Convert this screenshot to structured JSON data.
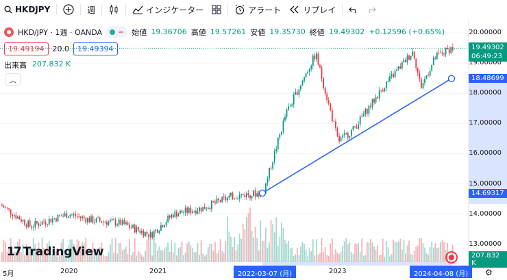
{
  "toolbar": {
    "symbol": "HKDJPY",
    "interval": "週",
    "indicators": "インジケーター",
    "alert": "アラート",
    "replay": "リプレイ"
  },
  "legend": {
    "title": "HKD/JPY · 1週 · OANDA",
    "open_label": "始値",
    "open": "19.36706",
    "high_label": "高値",
    "high": "19.57261",
    "low_label": "安値",
    "low": "19.35730",
    "close_label": "終値",
    "close": "19.49302",
    "change": "+0.12596 (+0.65%)",
    "bid": "19.49194",
    "spread": "20.0",
    "ask": "19.49394",
    "volume_label": "出来高",
    "volume": "207.832 K"
  },
  "price_axis": {
    "ticks": [
      "20.00000",
      "19.00000",
      "18.00000",
      "17.00000",
      "16.00000",
      "15.00000",
      "14.00000",
      "13.00000"
    ],
    "last_price": "19.49302",
    "countdown": "06:49:23",
    "line_end_price": "18.48699",
    "line_start_price": "14.69317",
    "volume_tag": "207.832 K"
  },
  "time_axis": {
    "labels": [
      "5月",
      "2020",
      "2021",
      "2023"
    ],
    "start_tag": "2022-03-07 (月)",
    "end_tag": "2024-04-08 (月)"
  },
  "branding": {
    "logo": "TradingView"
  },
  "colors": {
    "up": "#089981",
    "down": "#f23645",
    "accent": "#2962ff",
    "vol_up": "#a5d8cf",
    "vol_down": "#f7b2b8"
  },
  "chart_data": {
    "type": "candlestick",
    "symbol": "HKD/JPY",
    "interval": "1W",
    "ylim": [
      12.6,
      20.2
    ],
    "x_start": "2019-04",
    "x_end": "2024-05",
    "approx_close_path": [
      {
        "date": "2019-04",
        "value": 14.3
      },
      {
        "date": "2019-08",
        "value": 13.6
      },
      {
        "date": "2020-01",
        "value": 14.0
      },
      {
        "date": "2020-04",
        "value": 13.8
      },
      {
        "date": "2020-08",
        "value": 13.7
      },
      {
        "date": "2020-12",
        "value": 13.3
      },
      {
        "date": "2021-03",
        "value": 14.0
      },
      {
        "date": "2021-07",
        "value": 14.2
      },
      {
        "date": "2021-11",
        "value": 14.6
      },
      {
        "date": "2022-03",
        "value": 14.7
      },
      {
        "date": "2022-06",
        "value": 17.3
      },
      {
        "date": "2022-10",
        "value": 19.3
      },
      {
        "date": "2023-01",
        "value": 16.4
      },
      {
        "date": "2023-03",
        "value": 16.8
      },
      {
        "date": "2023-07",
        "value": 18.2
      },
      {
        "date": "2023-11",
        "value": 19.4
      },
      {
        "date": "2023-12",
        "value": 18.2
      },
      {
        "date": "2024-02",
        "value": 19.2
      },
      {
        "date": "2024-04",
        "value": 19.49
      }
    ],
    "trendline": {
      "from": {
        "date": "2022-03-07",
        "value": 14.69317
      },
      "to": {
        "date": "2024-04-08",
        "value": 18.48699
      }
    }
  }
}
